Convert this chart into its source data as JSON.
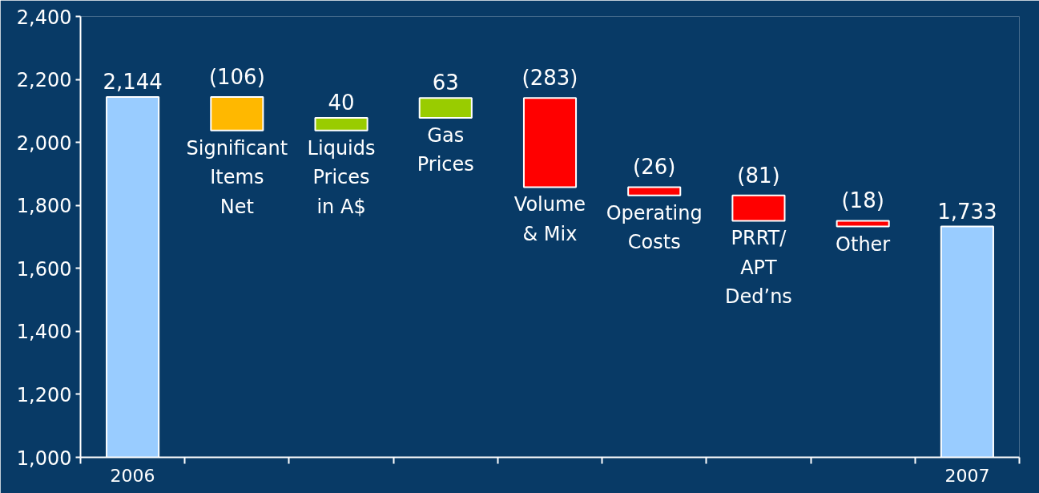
{
  "chart_data": {
    "type": "bar",
    "categories": [
      "2006",
      "Significant\nItems\nNet",
      "Liquids\nPrices\nin A$",
      "Gas\nPrices",
      "Volume\n& Mix",
      "Operating\nCosts",
      "PRRT/\nAPT\nDed’ns",
      "Other",
      "2007"
    ],
    "values": [
      2144,
      -106,
      40,
      63,
      -283,
      -26,
      -81,
      -18,
      1733
    ],
    "base": [
      null,
      2144,
      2038,
      2078,
      2141,
      1858,
      1832,
      1751,
      null
    ],
    "colors": [
      "#99ccff",
      "#ffb800",
      "#99cc00",
      "#99cc00",
      "#ff0000",
      "#ff0000",
      "#ff0000",
      "#ff0000",
      "#99ccff"
    ],
    "value_labels": [
      "2,144",
      "(106)",
      "40",
      "63",
      "(283)",
      "(26)",
      "(81)",
      "(18)",
      "1,733"
    ],
    "ylim": [
      1000,
      2400
    ],
    "yticks": [
      {
        "value": 1000,
        "label": "1,000"
      },
      {
        "value": 1200,
        "label": "1,200"
      },
      {
        "value": 1400,
        "label": "1,400"
      },
      {
        "value": 1600,
        "label": "1,600"
      },
      {
        "value": 1800,
        "label": "1,800"
      },
      {
        "value": 2000,
        "label": "2,000"
      },
      {
        "value": 2200,
        "label": "2,200"
      },
      {
        "value": 2400,
        "label": "2,400"
      }
    ],
    "grid": false
  }
}
